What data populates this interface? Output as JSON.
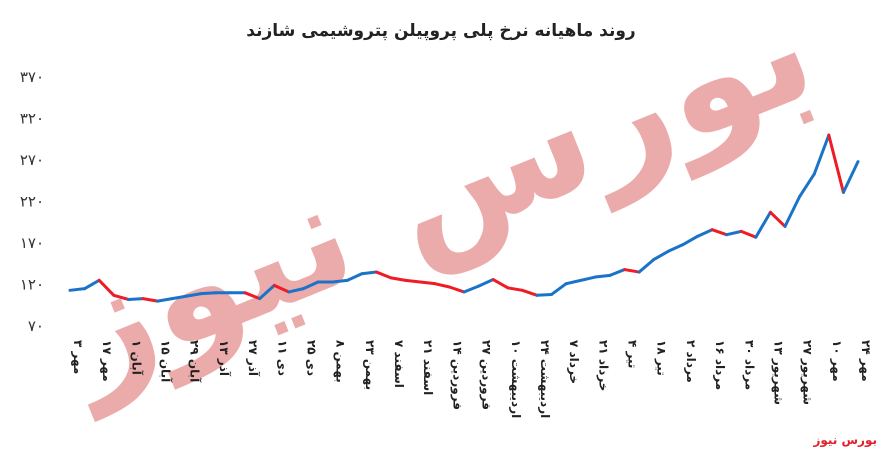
{
  "chart_data": {
    "type": "line",
    "title": "روند ماهیانه نرخ پلی پروپیلن پتروشیمی شازند",
    "yticks": [
      "۷۰",
      "۱۲۰",
      "۱۷۰",
      "۲۲۰",
      "۲۷۰",
      "۳۲۰",
      "۳۷۰"
    ],
    "ylim": [
      70,
      370
    ],
    "grid": false,
    "increase_color": "#1a73c8",
    "decrease_color": "#ee1c24",
    "categories": [
      "۳ مهر",
      "۱۷ مهر",
      "۱ آبان",
      "۱۵ آبان",
      "۲۹ آبان",
      "۱۳ آذر",
      "۲۷ آذر",
      "۱۱ دی",
      "۲۵ دی",
      "۸ بهمن",
      "۲۳ بهمن",
      "۷ اسفند",
      "۲۱ اسفند",
      "۱۴ فروردین",
      "۲۷ فروردین",
      "۱۰ اردیبهشت",
      "۲۴ اردیبهشت",
      "۷ خرداد",
      "۲۱ خرداد",
      "۴ تیر",
      "۱۸ تیر",
      "۲ مرداد",
      "۱۶ مرداد",
      "۳۰ مرداد",
      "۱۳ شهریور",
      "۲۷ شهریور",
      "۱۰ مهر",
      "۲۴ مهر"
    ],
    "x_values": [
      0,
      0.5,
      1,
      1.5,
      2,
      2.5,
      3,
      3.5,
      4,
      4.5,
      5,
      5.5,
      6,
      6.5,
      7,
      7.5,
      8,
      8.5,
      9,
      9.5,
      10,
      10.5,
      11,
      11.5,
      12,
      12.5,
      13,
      13.5,
      14,
      14.5,
      15,
      15.5,
      16,
      16.5,
      17,
      17.5,
      18,
      18.5,
      19,
      19.5,
      20,
      20.5,
      21,
      21.5,
      22,
      22.5,
      23,
      23.5,
      24,
      24.5,
      25,
      25.5,
      26,
      26.5,
      27
    ],
    "values": [
      113,
      115,
      125,
      107,
      102,
      103,
      100,
      103,
      106,
      109,
      110,
      110,
      110,
      103,
      119,
      111,
      115,
      123,
      123,
      125,
      133,
      135,
      128,
      125,
      123,
      121,
      117,
      111,
      118,
      126,
      116,
      113,
      107,
      108,
      121,
      125,
      129,
      131,
      138,
      135,
      150,
      160,
      168,
      178,
      186,
      180,
      184,
      177,
      207,
      190,
      226,
      253,
      300,
      231,
      268
    ]
  },
  "watermark": "بورس نیوز",
  "source_label": "بورس نیوز"
}
